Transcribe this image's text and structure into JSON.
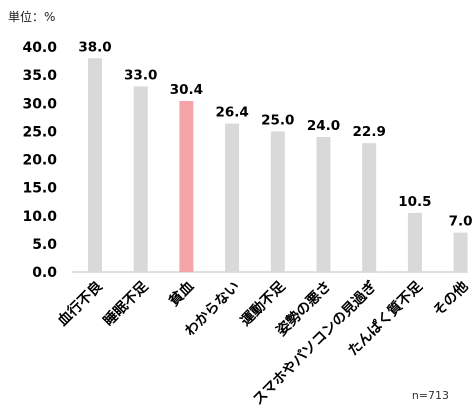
{
  "unit_label": "単位：%",
  "sample_note": "n=713",
  "colors": {
    "bar": "#d9d9d9",
    "highlight": "#f7a3aa"
  },
  "chart_data": {
    "type": "bar",
    "title": "",
    "xlabel": "",
    "ylabel": "",
    "ylim": [
      0,
      40
    ],
    "yticks": [
      "0.0",
      "5.0",
      "10.0",
      "15.0",
      "20.0",
      "25.0",
      "30.0",
      "35.0",
      "40.0"
    ],
    "grid": false,
    "categories": [
      "血行不良",
      "睡眠不足",
      "貧血",
      "わからない",
      "運動不足",
      "姿勢の悪さ",
      "スマホやパソコンの見過ぎ",
      "たんぱく質不足",
      "その他"
    ],
    "values": [
      38.0,
      33.0,
      30.4,
      26.4,
      25.0,
      24.0,
      22.9,
      10.5,
      7.0
    ],
    "value_labels": [
      "38.0",
      "33.0",
      "30.4",
      "26.4",
      "25.0",
      "24.0",
      "22.9",
      "10.5",
      "7.0"
    ],
    "highlight_category": "貧血"
  }
}
